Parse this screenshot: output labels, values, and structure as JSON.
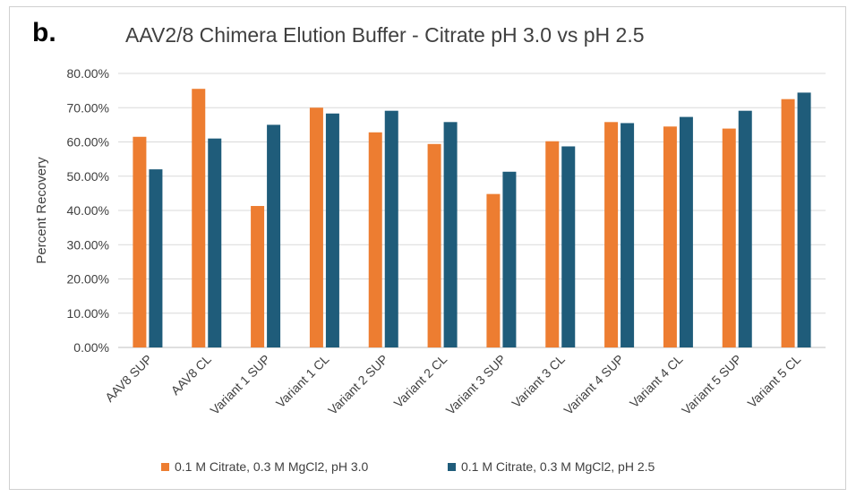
{
  "panel_label": "b.",
  "chart_data": {
    "type": "bar",
    "title": "AAV2/8 Chimera Elution Buffer - Citrate pH 3.0 vs pH 2.5",
    "xlabel": "",
    "ylabel": "Percent Recovery",
    "ylim": [
      0,
      80
    ],
    "yticks": [
      "0.00%",
      "10.00%",
      "20.00%",
      "30.00%",
      "40.00%",
      "50.00%",
      "60.00%",
      "70.00%",
      "80.00%"
    ],
    "grid": true,
    "legend_position": "bottom",
    "categories": [
      "AAV8 SUP",
      "AAV8 CL",
      "Variant 1 SUP",
      "Variant 1 CL",
      "Variant 2 SUP",
      "Variant 2 CL",
      "Variant 3 SUP",
      "Variant 3 CL",
      "Variant 4 SUP",
      "Variant 4 CL",
      "Variant 5 SUP",
      "Variant 5 CL"
    ],
    "series": [
      {
        "name": "0.1 M Citrate, 0.3 M MgCl2, pH 3.0",
        "color": "#ED7D31",
        "values": [
          61.5,
          75.5,
          41.3,
          70.0,
          62.8,
          59.4,
          44.8,
          60.2,
          65.8,
          64.5,
          63.9,
          72.5
        ]
      },
      {
        "name": "0.1 M Citrate, 0.3 M MgCl2, pH 2.5",
        "color": "#1F5C7A",
        "values": [
          52.0,
          61.0,
          65.0,
          68.3,
          69.1,
          65.8,
          51.3,
          58.7,
          65.5,
          67.3,
          69.1,
          74.4
        ]
      }
    ]
  }
}
